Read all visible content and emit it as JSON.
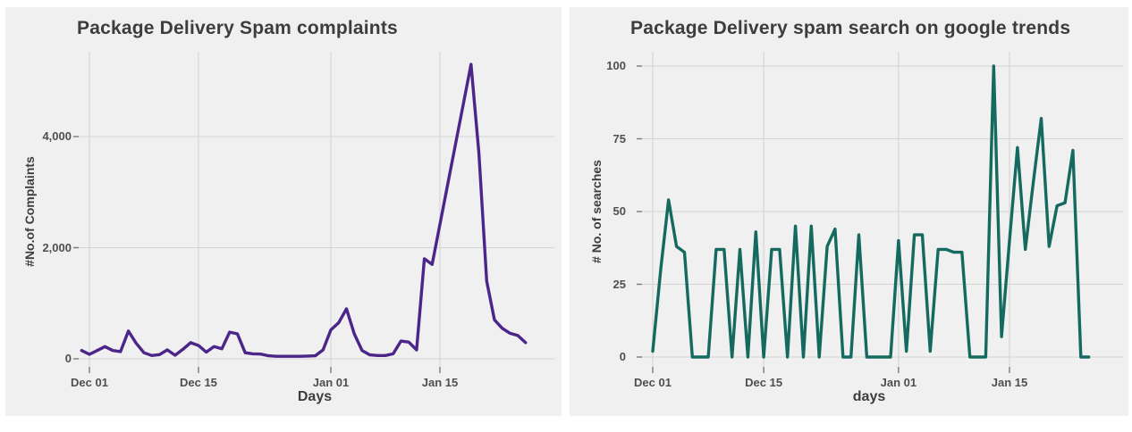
{
  "figure": {
    "page_background": "#ffffff",
    "panel_background": "#f0f0f0",
    "grid_color": "#d4d4d4",
    "tick_mark_color": "#7a7a7a",
    "title_color": "#3d3d3d",
    "axis_title_color": "#3d3d3d",
    "tick_label_color": "#4f4f4f"
  },
  "chart_data": [
    {
      "id": "complaints",
      "type": "line",
      "title": "Package Delivery Spam complaints",
      "xlabel": "Days",
      "ylabel": "#No.of Complaints",
      "line_color": "#4b2589",
      "legend": "none",
      "grid": "on",
      "x_unit": "days since Dec 01",
      "start_day": -1,
      "x_ticks": [
        {
          "label": "Dec 01",
          "day": 0
        },
        {
          "label": "Dec 15",
          "day": 14
        },
        {
          "label": "Jan 01",
          "day": 31
        },
        {
          "label": "Jan 15",
          "day": 45
        }
      ],
      "y_ticks": [
        {
          "label": "0",
          "value": 0
        },
        {
          "label": "2,000",
          "value": 2000
        },
        {
          "label": "4,000",
          "value": 4000
        }
      ],
      "ylim": [
        0,
        5500
      ],
      "values": [
        150,
        80,
        150,
        220,
        150,
        130,
        500,
        280,
        110,
        60,
        75,
        160,
        65,
        170,
        290,
        240,
        120,
        220,
        180,
        480,
        450,
        110,
        90,
        85,
        55,
        45,
        45,
        45,
        45,
        50,
        55,
        160,
        520,
        650,
        900,
        450,
        150,
        70,
        60,
        60,
        90,
        320,
        300,
        160,
        1800,
        1700,
        2420,
        3140,
        3860,
        4580,
        5300,
        3700,
        1400,
        700,
        550,
        460,
        420,
        290
      ]
    },
    {
      "id": "google-trends",
      "type": "line",
      "title": "Package Delivery spam search on google trends",
      "xlabel": "days",
      "ylabel": "# No. of searches",
      "line_color": "#156a60",
      "legend": "none",
      "grid": "on",
      "x_unit": "days since Dec 01",
      "start_day": 0,
      "x_ticks": [
        {
          "label": "Dec 01",
          "day": 0
        },
        {
          "label": "Dec 15",
          "day": 14
        },
        {
          "label": "Jan 01",
          "day": 31
        },
        {
          "label": "Jan 15",
          "day": 45
        }
      ],
      "y_ticks": [
        {
          "label": "0",
          "value": 0
        },
        {
          "label": "25",
          "value": 25
        },
        {
          "label": "50",
          "value": 50
        },
        {
          "label": "75",
          "value": 75
        },
        {
          "label": "100",
          "value": 100
        }
      ],
      "ylim": [
        0,
        100
      ],
      "values": [
        2,
        30,
        54,
        38,
        36,
        0,
        0,
        0,
        37,
        37,
        0,
        37,
        0,
        43,
        0,
        37,
        37,
        0,
        45,
        0,
        45,
        0,
        38,
        44,
        0,
        0,
        42,
        0,
        0,
        0,
        0,
        40,
        2,
        42,
        42,
        2,
        37,
        37,
        36,
        36,
        0,
        0,
        0,
        100,
        7,
        40,
        72,
        37,
        60,
        82,
        38,
        52,
        53,
        71,
        0,
        0
      ]
    }
  ]
}
